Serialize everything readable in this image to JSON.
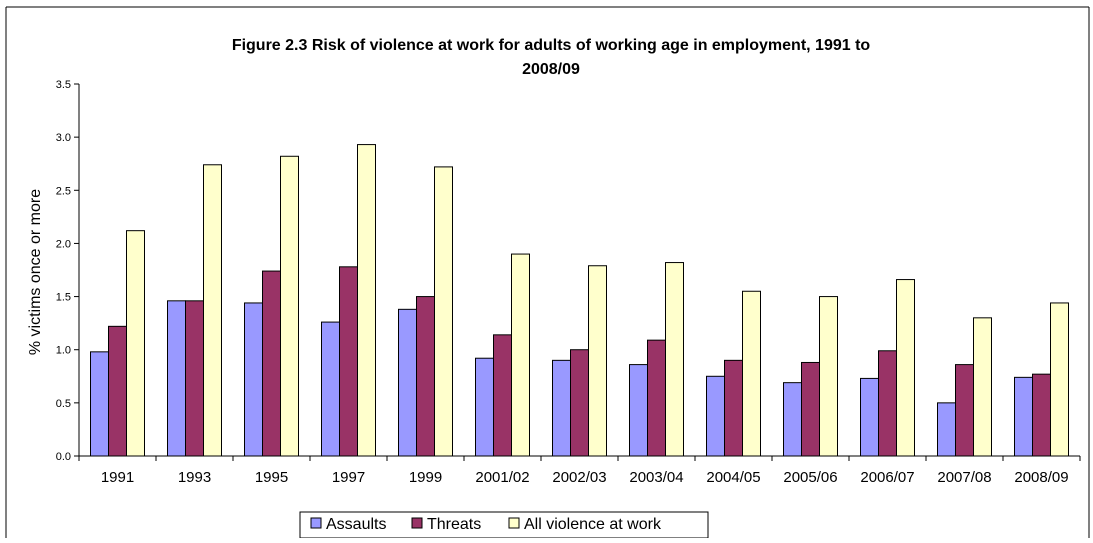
{
  "chart_data": {
    "type": "bar",
    "title_line1": "Figure 2.3 Risk of violence at work for adults of working age in employment, 1991 to",
    "title_line2": "2008/09",
    "xlabel": "",
    "ylabel": "% victims once or more",
    "ylim": [
      0,
      3.5
    ],
    "yticks": [
      "0.0",
      "0.5",
      "1.0",
      "1.5",
      "2.0",
      "2.5",
      "3.0",
      "3.5"
    ],
    "grid": false,
    "legend_position": "bottom",
    "categories": [
      "1991",
      "1993",
      "1995",
      "1997",
      "1999",
      "2001/02",
      "2002/03",
      "2003/04",
      "2004/05",
      "2005/06",
      "2006/07",
      "2007/08",
      "2008/09"
    ],
    "series": [
      {
        "name": "Assaults",
        "color": "#9999ff",
        "values": [
          0.98,
          1.46,
          1.44,
          1.26,
          1.38,
          0.92,
          0.9,
          0.86,
          0.75,
          0.69,
          0.73,
          0.5,
          0.74
        ]
      },
      {
        "name": "Threats",
        "color": "#993366",
        "values": [
          1.22,
          1.46,
          1.74,
          1.78,
          1.5,
          1.14,
          1.0,
          1.09,
          0.9,
          0.88,
          0.99,
          0.86,
          0.77
        ]
      },
      {
        "name": "All violence at work",
        "color": "#ffffcc",
        "values": [
          2.12,
          2.74,
          2.82,
          2.93,
          2.72,
          1.9,
          1.79,
          1.82,
          1.55,
          1.5,
          1.66,
          1.3,
          1.44
        ]
      }
    ]
  }
}
